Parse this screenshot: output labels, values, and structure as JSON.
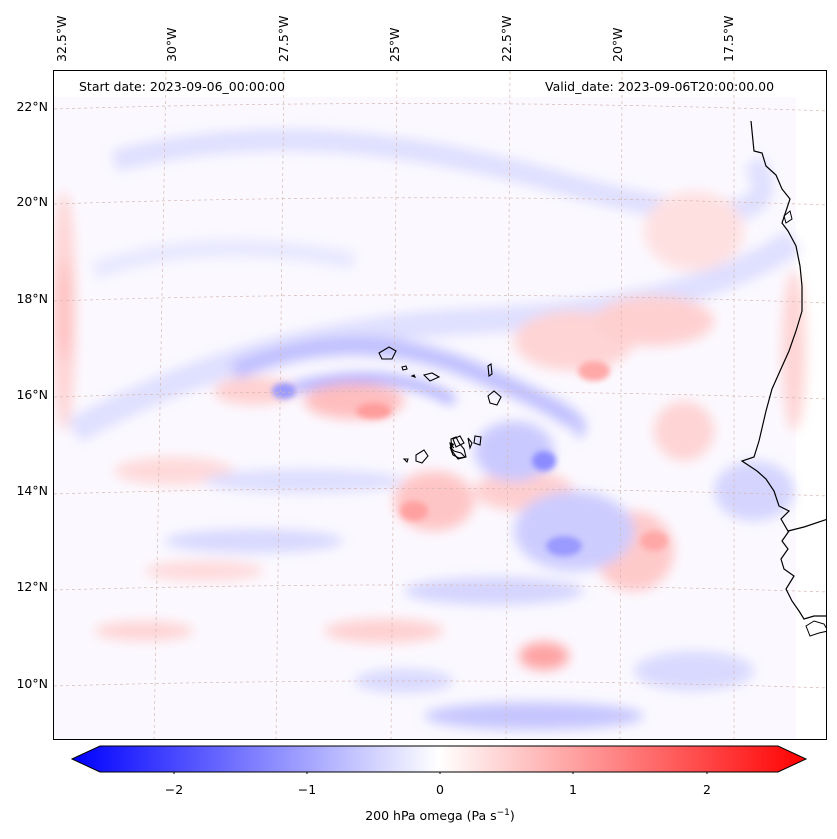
{
  "header": {
    "start_date": "Start date: 2023-09-06_00:00:00",
    "valid_date": "Valid_date: 2023-09-06T20:00:00.00"
  },
  "map": {
    "longitude_labels": [
      "32.5°W",
      "30°W",
      "27.5°W",
      "25°W",
      "22.5°W",
      "20°W",
      "17.5°W"
    ],
    "latitude_labels": [
      "22°N",
      "20°N",
      "18°N",
      "16°N",
      "14°N",
      "12°N",
      "10°N"
    ],
    "field": "200 hPa omega",
    "coastline_color": "#000000",
    "gridline_color": "#d0b0a0"
  },
  "colorbar": {
    "ticks": [
      "−2",
      "−1",
      "0",
      "1",
      "2"
    ],
    "label": "200 hPa omega (Pa s",
    "label_sup": "−1",
    "label_end": ")",
    "min": -2.7,
    "max": 2.7,
    "min_color": "#0000ff",
    "mid_color": "#ffffff",
    "max_color": "#ff0000"
  }
}
